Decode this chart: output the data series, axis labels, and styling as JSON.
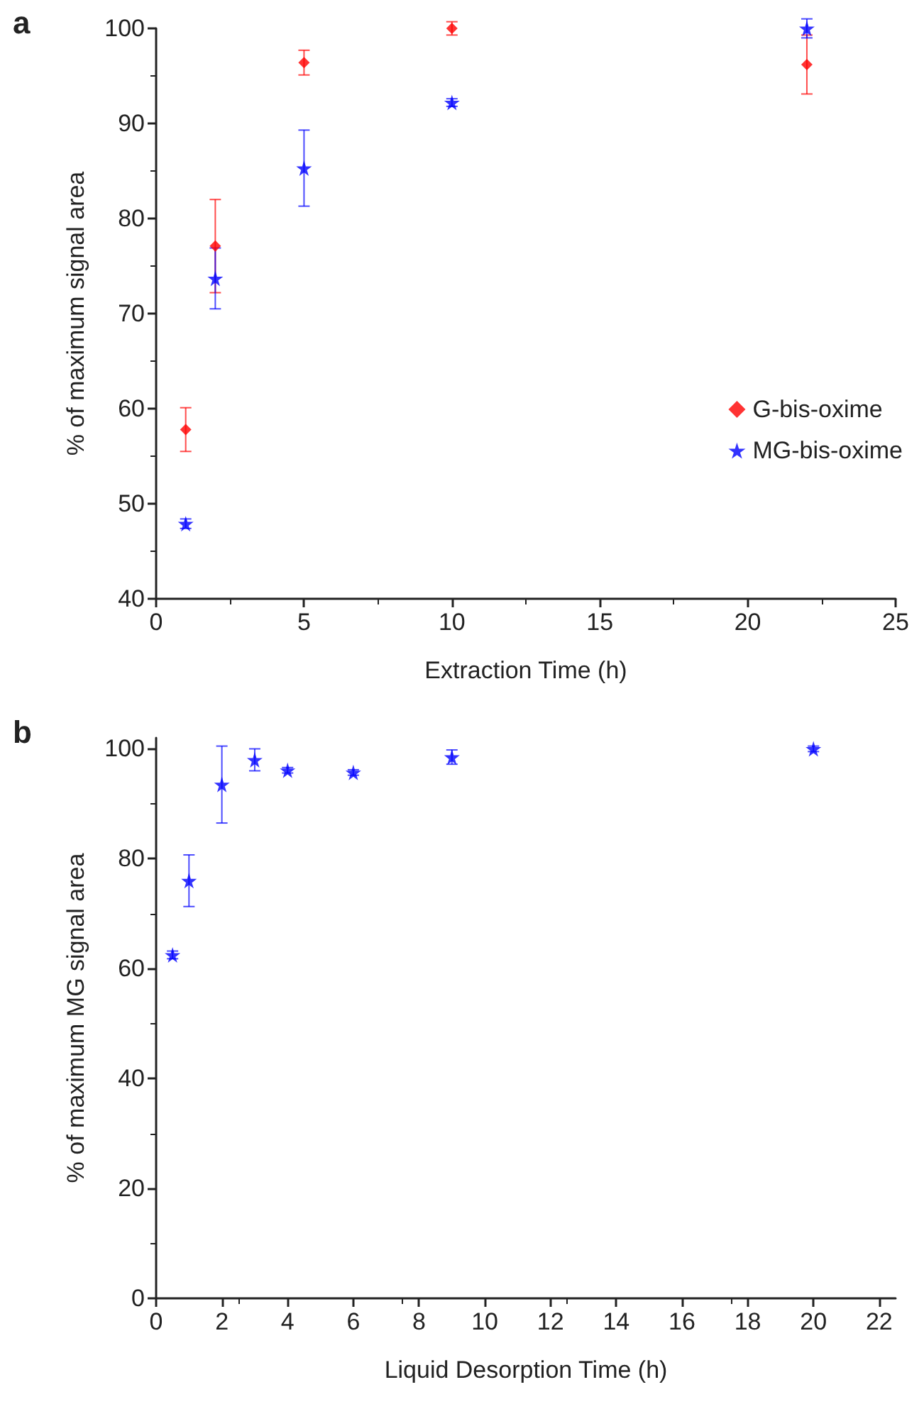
{
  "chart_data": [
    {
      "type": "scatter",
      "title": "a",
      "xlabel": "Extraction Time (h)",
      "ylabel": "% of maximum signal area",
      "xlim": [
        0,
        25
      ],
      "xticks": [
        0,
        5,
        10,
        15,
        20,
        25
      ],
      "ylim": [
        40,
        100
      ],
      "yticks": [
        40,
        50,
        60,
        70,
        80,
        90,
        100
      ],
      "grid": false,
      "legend": "right",
      "series": [
        {
          "name": "G-bis-oxime",
          "color": "#ff0000",
          "marker": "diamond",
          "x": [
            1,
            2,
            5,
            10,
            22
          ],
          "values": [
            57.8,
            77.1,
            96.4,
            100,
            96.2
          ],
          "errors": [
            2.3,
            4.9,
            1.3,
            0.7,
            3.1
          ]
        },
        {
          "name": "MG-bis-oxime",
          "color": "#0000ff",
          "marker": "star",
          "x": [
            1,
            2,
            5,
            10,
            22
          ],
          "values": [
            47.9,
            73.7,
            85.3,
            92.2,
            100
          ],
          "errors": [
            0.5,
            3.2,
            4.0,
            0.4,
            1.0
          ]
        }
      ]
    },
    {
      "type": "scatter",
      "title": "b",
      "xlabel": "Liquid Desorption Time (h)",
      "ylabel": "% of maximum MG signal area",
      "xlim": [
        0,
        22.5
      ],
      "xticks": [
        0,
        2,
        4,
        6,
        8,
        10,
        12,
        14,
        16,
        18,
        20,
        22
      ],
      "ylim": [
        0,
        102
      ],
      "yticks": [
        0,
        20,
        40,
        60,
        80,
        100
      ],
      "grid": false,
      "legend": false,
      "series": [
        {
          "color": "#0000ff",
          "marker": "star",
          "x": [
            0.5,
            1,
            2,
            3,
            4,
            6,
            9,
            20
          ],
          "values": [
            62.5,
            76.0,
            93.5,
            98.0,
            96.1,
            95.7,
            98.5,
            100
          ],
          "errors": [
            0.7,
            4.7,
            7.0,
            2.0,
            0.5,
            0.5,
            1.3,
            0.5
          ]
        }
      ]
    }
  ]
}
